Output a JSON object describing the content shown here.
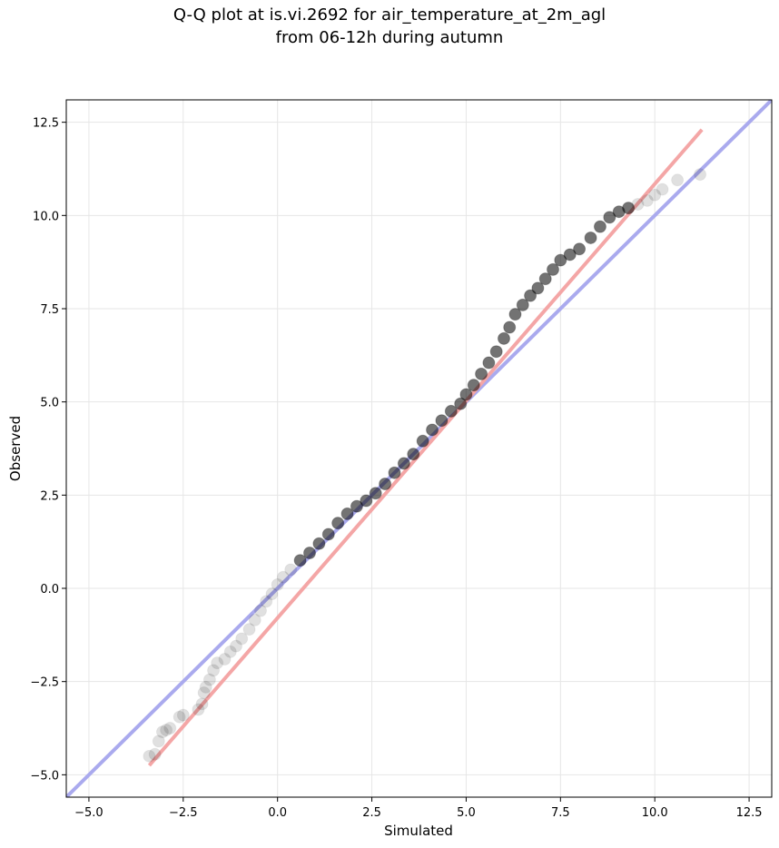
{
  "chart_data": {
    "type": "scatter",
    "title": "Q-Q plot at is.vi.2692 for air_temperature_at_2m_agl",
    "subtitle": "from 06-12h during autumn",
    "xlabel": "Simulated",
    "ylabel": "Observed",
    "xlim": [
      -5.6,
      13.1
    ],
    "ylim": [
      -5.6,
      13.1
    ],
    "xticks": [
      -5.0,
      -2.5,
      0.0,
      2.5,
      5.0,
      7.5,
      10.0,
      12.5
    ],
    "yticks": [
      -5.0,
      -2.5,
      0.0,
      2.5,
      5.0,
      7.5,
      10.0,
      12.5
    ],
    "xtick_labels": [
      "−5.0",
      "−2.5",
      "0.0",
      "2.5",
      "5.0",
      "7.5",
      "10.0",
      "12.5"
    ],
    "ytick_labels": [
      "−5.0",
      "−2.5",
      "0.0",
      "2.5",
      "5.0",
      "7.5",
      "10.0",
      "12.5"
    ],
    "grid": true,
    "colors": {
      "points": "#000000",
      "identity_line": "#aaaaee",
      "fit_line": "#f4a6a6"
    },
    "identity_line": {
      "x": [
        -5.6,
        13.1
      ],
      "y": [
        -5.6,
        13.1
      ]
    },
    "fit_line": {
      "x": [
        -3.4,
        11.25
      ],
      "y": [
        -4.75,
        12.3
      ]
    },
    "points": {
      "x": [
        -3.4,
        -3.25,
        -3.15,
        -3.05,
        -2.95,
        -2.85,
        -2.6,
        -2.5,
        -2.1,
        -2.0,
        -1.95,
        -1.9,
        -1.8,
        -1.7,
        -1.6,
        -1.4,
        -1.25,
        -1.1,
        -0.95,
        -0.75,
        -0.6,
        -0.45,
        -0.3,
        -0.15,
        0.0,
        0.15,
        0.35,
        0.6,
        0.85,
        1.1,
        1.35,
        1.6,
        1.85,
        2.1,
        2.35,
        2.6,
        2.85,
        3.1,
        3.35,
        3.6,
        3.85,
        4.1,
        4.35,
        4.6,
        4.85,
        5.0,
        5.2,
        5.4,
        5.6,
        5.8,
        6.0,
        6.15,
        6.3,
        6.5,
        6.7,
        6.9,
        7.1,
        7.3,
        7.5,
        7.75,
        8.0,
        8.3,
        8.55,
        8.8,
        9.05,
        9.3,
        9.55,
        9.8,
        10.0,
        10.2,
        10.6,
        11.2
      ],
      "y": [
        -4.5,
        -4.45,
        -4.1,
        -3.85,
        -3.8,
        -3.75,
        -3.45,
        -3.4,
        -3.25,
        -3.1,
        -2.8,
        -2.65,
        -2.45,
        -2.2,
        -2.0,
        -1.9,
        -1.7,
        -1.55,
        -1.35,
        -1.1,
        -0.85,
        -0.6,
        -0.35,
        -0.15,
        0.1,
        0.3,
        0.5,
        0.75,
        0.95,
        1.2,
        1.45,
        1.75,
        2.0,
        2.2,
        2.35,
        2.55,
        2.8,
        3.1,
        3.35,
        3.6,
        3.95,
        4.25,
        4.5,
        4.75,
        4.95,
        5.2,
        5.45,
        5.75,
        6.05,
        6.35,
        6.7,
        7.0,
        7.35,
        7.6,
        7.85,
        8.05,
        8.3,
        8.55,
        8.8,
        8.95,
        9.1,
        9.4,
        9.7,
        9.95,
        10.1,
        10.2,
        10.3,
        10.4,
        10.55,
        10.7,
        10.95,
        11.1
      ]
    }
  }
}
